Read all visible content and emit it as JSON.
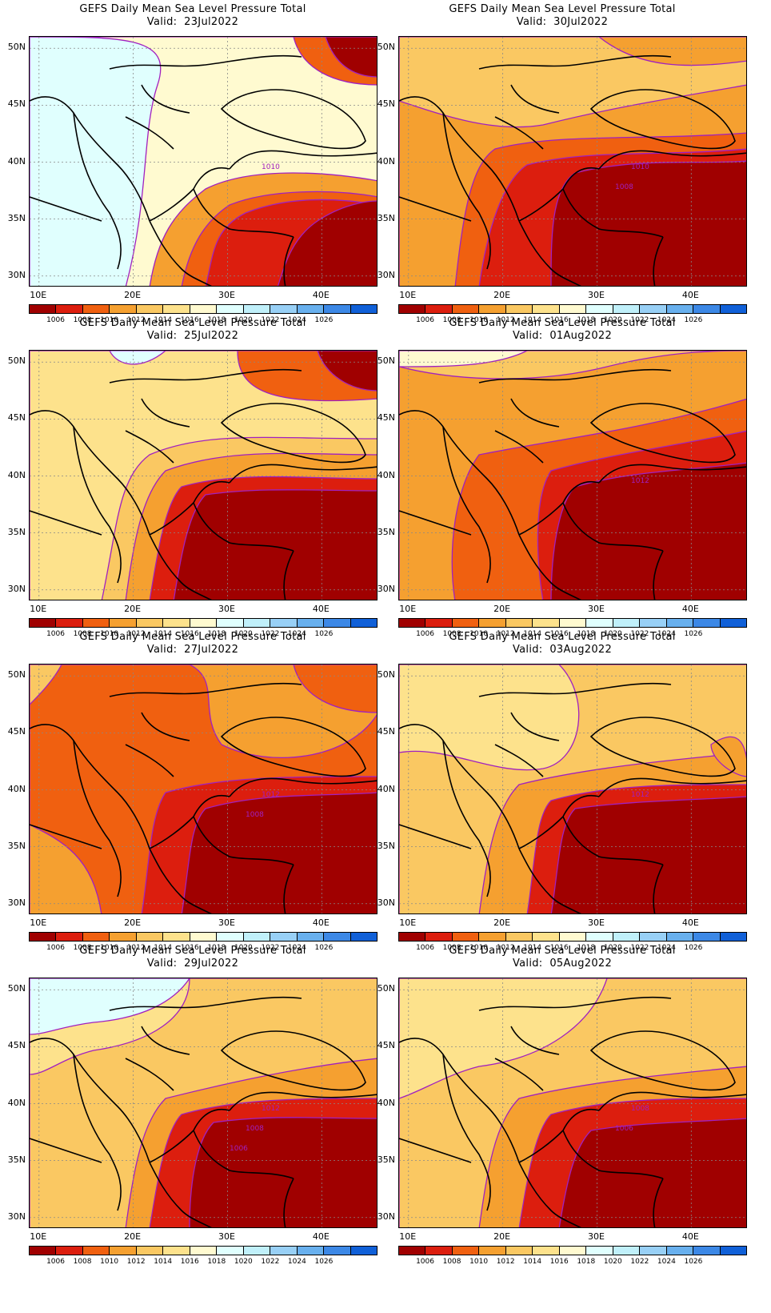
{
  "panels": [
    {
      "title": "GEFS Daily Mean Sea Level Pressure Total",
      "valid": "Valid:  23Jul2022",
      "contour_labels": [
        "1010"
      ],
      "scheme": 0
    },
    {
      "title": "GEFS Daily Mean Sea Level Pressure Total",
      "valid": "Valid:  30Jul2022",
      "contour_labels": [
        "1010",
        "1008"
      ],
      "scheme": 1
    },
    {
      "title": "GEFS Daily Mean Sea Level Pressure Total",
      "valid": "Valid:  25Jul2022",
      "contour_labels": [],
      "scheme": 2
    },
    {
      "title": "GEFS Daily Mean Sea Level Pressure Total",
      "valid": "Valid:  01Aug2022",
      "contour_labels": [
        "1012"
      ],
      "scheme": 3
    },
    {
      "title": "GEFS Daily Mean Sea Level Pressure Total",
      "valid": "Valid:  27Jul2022",
      "contour_labels": [
        "1012",
        "1008"
      ],
      "scheme": 4
    },
    {
      "title": "GEFS Daily Mean Sea Level Pressure Total",
      "valid": "Valid:  03Aug2022",
      "contour_labels": [
        "1012"
      ],
      "scheme": 5
    },
    {
      "title": "GEFS Daily Mean Sea Level Pressure Total",
      "valid": "Valid:  29Jul2022",
      "contour_labels": [
        "1012",
        "1008",
        "1006"
      ],
      "scheme": 6
    },
    {
      "title": "GEFS Daily Mean Sea Level Pressure Total",
      "valid": "Valid:  05Aug2022",
      "contour_labels": [
        "1008",
        "1006"
      ],
      "scheme": 7
    }
  ],
  "lat_labels": [
    "50N",
    "45N",
    "40N",
    "35N",
    "30N"
  ],
  "lon_labels": [
    "10E",
    "20E",
    "30E",
    "40E"
  ],
  "colorbar": {
    "labels": [
      "1006",
      "1008",
      "1010",
      "1012",
      "1014",
      "1016",
      "1018",
      "1020",
      "1022",
      "1024",
      "1026"
    ],
    "colors": [
      "#a00000",
      "#dc1e0e",
      "#f06010",
      "#f5a030",
      "#fac862",
      "#fde28c",
      "#fffad0",
      "#e0fffe",
      "#c0f0fa",
      "#98d0f6",
      "#68b0ee",
      "#3c88e6",
      "#1060d8"
    ]
  }
}
